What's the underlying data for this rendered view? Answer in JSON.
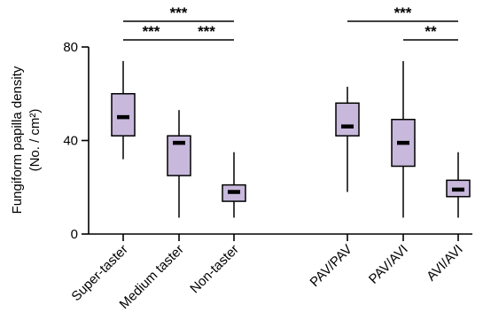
{
  "chart_data": {
    "type": "box",
    "ylabel_line1": "Fungiform papilla density",
    "ylabel_line2": "(No. / cm²)",
    "ylim": [
      0,
      80
    ],
    "yticks": [
      "0",
      "40",
      "80"
    ],
    "box_color": "#c7b8dc",
    "groups": [
      {
        "boxes": [
          {
            "name": "Super-taster",
            "min": 32,
            "q1": 42,
            "median": 50,
            "q3": 60,
            "max": 74
          },
          {
            "name": "Medium taster",
            "min": 7,
            "q1": 25,
            "median": 39,
            "q3": 42,
            "max": 53
          },
          {
            "name": "Non-taster",
            "min": 7,
            "q1": 14,
            "median": 18,
            "q3": 21,
            "max": 35
          }
        ],
        "comparisons": [
          {
            "from": 0,
            "to": 2,
            "label": "***",
            "level": 2
          },
          {
            "from": 0,
            "to": 1,
            "label": "***",
            "level": 1
          },
          {
            "from": 1,
            "to": 2,
            "label": "***",
            "level": 1
          }
        ]
      },
      {
        "boxes": [
          {
            "name": "PAV/PAV",
            "min": 18,
            "q1": 42,
            "median": 46,
            "q3": 56,
            "max": 63
          },
          {
            "name": "PAV/AVI",
            "min": 7,
            "q1": 29,
            "median": 39,
            "q3": 49,
            "max": 74
          },
          {
            "name": "AVI/AVI",
            "min": 7,
            "q1": 16,
            "median": 19,
            "q3": 23,
            "max": 35
          }
        ],
        "comparisons": [
          {
            "from": 0,
            "to": 2,
            "label": "***",
            "level": 2
          },
          {
            "from": 1,
            "to": 2,
            "label": "**",
            "level": 1
          }
        ]
      }
    ]
  }
}
